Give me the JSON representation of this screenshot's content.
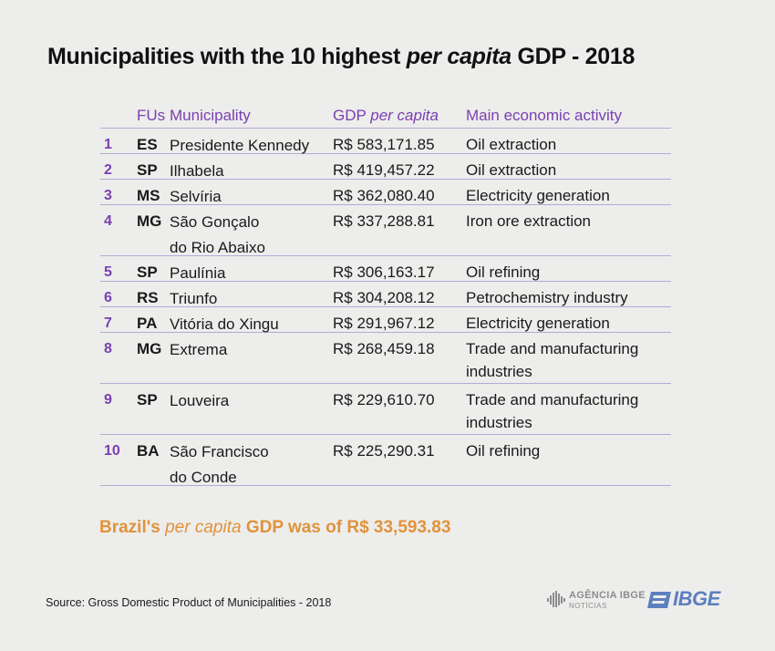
{
  "title": {
    "part1": "Municipalities with the 10 highest ",
    "italic": "per capita",
    "part2": " GDP - 2018"
  },
  "table": {
    "headers": {
      "fus": "FUs",
      "municipality": "Municipality",
      "gdp_prefix": "GDP ",
      "gdp_italic": "per capita",
      "activity": "Main economic activity"
    },
    "rows": [
      {
        "rank": "1",
        "fu": "ES",
        "municipality": [
          "Presidente Kennedy"
        ],
        "gdp": "R$ 583,171.85",
        "activity": [
          "Oil extraction"
        ]
      },
      {
        "rank": "2",
        "fu": "SP",
        "municipality": [
          "Ilhabela"
        ],
        "gdp": "R$ 419,457.22",
        "activity": [
          "Oil extraction"
        ]
      },
      {
        "rank": "3",
        "fu": "MS",
        "municipality": [
          "Selvíria"
        ],
        "gdp": "R$ 362,080.40",
        "activity": [
          "Electricity generation"
        ]
      },
      {
        "rank": "4",
        "fu": "MG",
        "municipality": [
          "São Gonçalo",
          "do Rio Abaixo"
        ],
        "gdp": "R$ 337,288.81",
        "activity": [
          "Iron ore extraction"
        ]
      },
      {
        "rank": "5",
        "fu": "SP",
        "municipality": [
          "Paulínia"
        ],
        "gdp": "R$ 306,163.17",
        "activity": [
          "Oil refining"
        ]
      },
      {
        "rank": "6",
        "fu": "RS",
        "municipality": [
          "Triunfo"
        ],
        "gdp": "R$ 304,208.12",
        "activity": [
          "Petrochemistry industry"
        ]
      },
      {
        "rank": "7",
        "fu": "PA",
        "municipality": [
          "Vitória do Xingu"
        ],
        "gdp": "R$ 291,967.12",
        "activity": [
          "Electricity generation"
        ]
      },
      {
        "rank": "8",
        "fu": "MG",
        "municipality": [
          "Extrema"
        ],
        "gdp": "R$ 268,459.18",
        "activity": [
          "Trade and manufacturing",
          "industries"
        ]
      },
      {
        "rank": "9",
        "fu": "SP",
        "municipality": [
          "Louveira"
        ],
        "gdp": "R$ 229,610.70",
        "activity": [
          "Trade and manufacturing",
          "industries"
        ]
      },
      {
        "rank": "10",
        "fu": "BA",
        "municipality": [
          "São Francisco",
          "do Conde"
        ],
        "gdp": "R$ 225,290.31",
        "activity": [
          "Oil refining"
        ]
      }
    ]
  },
  "summary": {
    "part1": "Brazil's ",
    "italic": "per capita",
    "part2": " GDP was of R$ 33,593.83"
  },
  "source": "Source: Gross Domestic Product of Municipalities - 2018",
  "logos": {
    "agencia_line1": "AGÊNCIA IBGE",
    "agencia_line2": "NOTÍCIAS",
    "ibge": "IBGE"
  },
  "colors": {
    "accent_purple": "#7a40b0",
    "accent_orange": "#e0933b",
    "ibge_blue": "#5d7fbf",
    "background": "#ededec"
  }
}
